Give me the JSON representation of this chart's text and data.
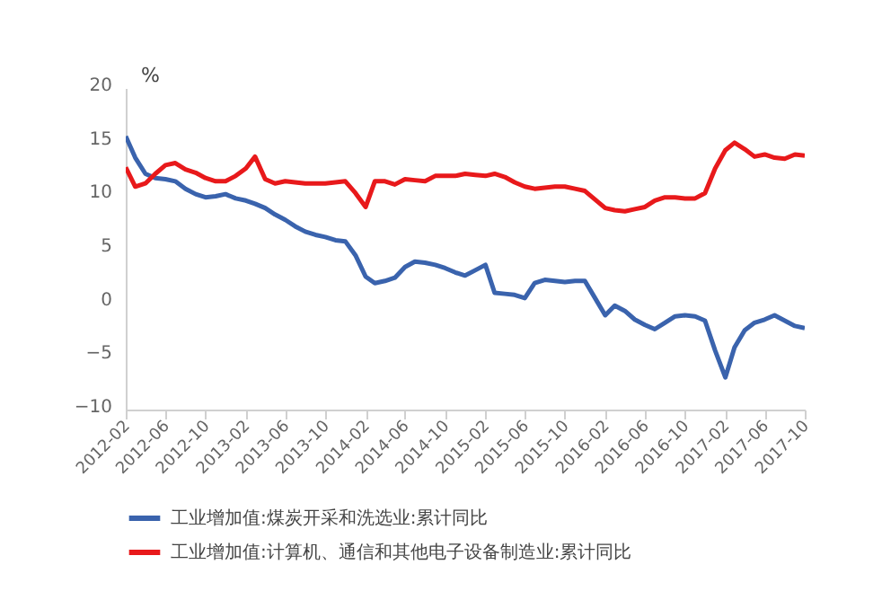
{
  "chart_data": {
    "type": "line",
    "ylabel": "%",
    "legend": "bottom",
    "grid": false,
    "marker": "none",
    "line_style": "solid",
    "x": [
      "2012-02",
      "2012-03",
      "2012-04",
      "2012-05",
      "2012-06",
      "2012-07",
      "2012-08",
      "2012-09",
      "2012-10",
      "2012-11",
      "2012-12",
      "2013-01",
      "2013-02",
      "2013-03",
      "2013-04",
      "2013-05",
      "2013-06",
      "2013-07",
      "2013-08",
      "2013-09",
      "2013-10",
      "2013-11",
      "2013-12",
      "2014-01",
      "2014-02",
      "2014-03",
      "2014-04",
      "2014-05",
      "2014-06",
      "2014-07",
      "2014-08",
      "2014-09",
      "2014-10",
      "2014-11",
      "2014-12",
      "2015-01",
      "2015-02",
      "2015-03",
      "2015-04",
      "2015-05",
      "2015-06",
      "2015-07",
      "2015-08",
      "2015-09",
      "2015-10",
      "2015-11",
      "2015-12",
      "2016-01",
      "2016-02",
      "2016-03",
      "2016-04",
      "2016-05",
      "2016-06",
      "2016-07",
      "2016-08",
      "2016-09",
      "2016-10",
      "2016-11",
      "2016-12",
      "2017-01",
      "2017-02",
      "2017-03",
      "2017-04",
      "2017-05",
      "2017-06",
      "2017-07",
      "2017-08",
      "2017-09",
      "2017-10"
    ],
    "xlim": [
      "2012-02",
      "2017-10"
    ],
    "xticks": [
      "2012-02",
      "2012-06",
      "2012-10",
      "2013-02",
      "2013-06",
      "2013-10",
      "2014-02",
      "2014-06",
      "2014-10",
      "2015-02",
      "2015-06",
      "2015-10",
      "2016-02",
      "2016-06",
      "2016-10",
      "2017-02",
      "2017-06",
      "2017-10"
    ],
    "ylim": [
      -10,
      20
    ],
    "yticks": [
      -10,
      -5,
      0,
      5,
      10,
      15,
      20
    ],
    "series": [
      {
        "name": "工业增加值:煤炭开采和洗选业:累计同比",
        "color": "#3a63ad",
        "values": [
          15.5,
          13.5,
          12,
          11.6,
          11.5,
          11.3,
          10.6,
          10.1,
          9.8,
          9.9,
          10.1,
          9.7,
          9.5,
          9.2,
          8.8,
          8.2,
          7.7,
          7.1,
          6.6,
          6.3,
          6.1,
          5.8,
          5.7,
          4.4,
          2.4,
          1.8,
          2.0,
          2.3,
          3.3,
          3.8,
          3.7,
          3.5,
          3.2,
          2.8,
          2.5,
          3.0,
          3.5,
          0.9,
          0.8,
          0.7,
          0.4,
          1.8,
          2.1,
          2.0,
          1.9,
          2.0,
          2.0,
          0.4,
          -1.2,
          -0.3,
          -0.8,
          -1.6,
          -2.1,
          -2.5,
          -1.9,
          -1.3,
          -1.2,
          -1.3,
          -1.7,
          -4.5,
          -7.0,
          -4.2,
          -2.6,
          -1.9,
          -1.6,
          -1.2,
          -1.7,
          -2.2,
          -2.4
        ]
      },
      {
        "name": "工业增加值:计算机、通信和其他电子设备制造业:累计同比",
        "color": "#e8191b",
        "values": [
          12.6,
          10.8,
          11.1,
          12.0,
          12.8,
          13.0,
          12.4,
          12.1,
          11.6,
          11.3,
          11.3,
          11.8,
          12.5,
          13.6,
          11.5,
          11.1,
          11.3,
          11.2,
          11.1,
          11.1,
          11.1,
          11.2,
          11.3,
          10.2,
          8.9,
          11.3,
          11.3,
          11.0,
          11.5,
          11.4,
          11.3,
          11.8,
          11.8,
          11.8,
          12.0,
          11.9,
          11.8,
          12.0,
          11.7,
          11.2,
          10.8,
          10.6,
          10.7,
          10.8,
          10.8,
          10.6,
          10.4,
          9.6,
          8.8,
          8.6,
          8.5,
          8.7,
          8.9,
          9.5,
          9.8,
          9.8,
          9.7,
          9.7,
          10.2,
          12.5,
          14.2,
          14.9,
          14.3,
          13.6,
          13.8,
          13.5,
          13.4,
          13.8,
          13.7
        ]
      }
    ]
  }
}
